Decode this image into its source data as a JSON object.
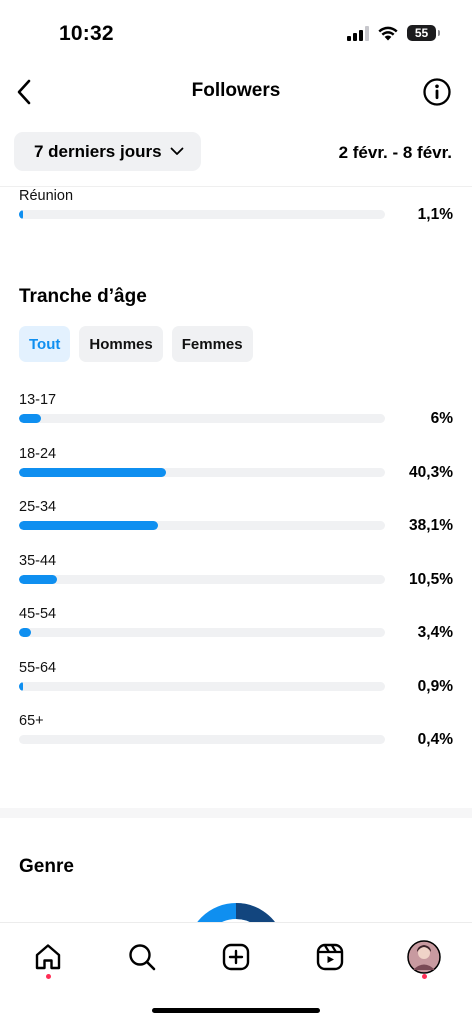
{
  "status_bar": {
    "time": "10:32",
    "battery": "55"
  },
  "header": {
    "title": "Followers"
  },
  "filter": {
    "period": "7 derniers jours",
    "date_range": "2 févr. - 8 févr."
  },
  "location_row": {
    "label": "Réunion",
    "value": "1,1%",
    "fraction": 0.011
  },
  "age_section": {
    "title": "Tranche d’âge",
    "tabs": [
      "Tout",
      "Hommes",
      "Femmes"
    ],
    "active_tab": "Tout",
    "rows": [
      {
        "label": "13-17",
        "value": "6%",
        "percent": 6
      },
      {
        "label": "18-24",
        "value": "40,3%",
        "percent": 40.3
      },
      {
        "label": "25-34",
        "value": "38,1%",
        "percent": 38.1
      },
      {
        "label": "35-44",
        "value": "10,5%",
        "percent": 10.5
      },
      {
        "label": "45-54",
        "value": "3,4%",
        "percent": 3.4
      },
      {
        "label": "55-64",
        "value": "0,9%",
        "percent": 0.9
      },
      {
        "label": "65+",
        "value": "0,4%",
        "percent": 0.4
      }
    ]
  },
  "gender_section": {
    "title": "Genre"
  },
  "colors": {
    "accent": "#0f8ff0",
    "track": "#f0f1f3",
    "donut_dark": "#12457e",
    "notification": "#ff2d55"
  },
  "bottom_nav": {
    "items": [
      {
        "icon": "home-icon",
        "active": true,
        "badge": true
      },
      {
        "icon": "search-icon",
        "active": false,
        "badge": false
      },
      {
        "icon": "create-icon",
        "active": false,
        "badge": false
      },
      {
        "icon": "reels-icon",
        "active": false,
        "badge": false
      },
      {
        "icon": "profile-avatar",
        "active": false,
        "badge": true
      }
    ]
  }
}
